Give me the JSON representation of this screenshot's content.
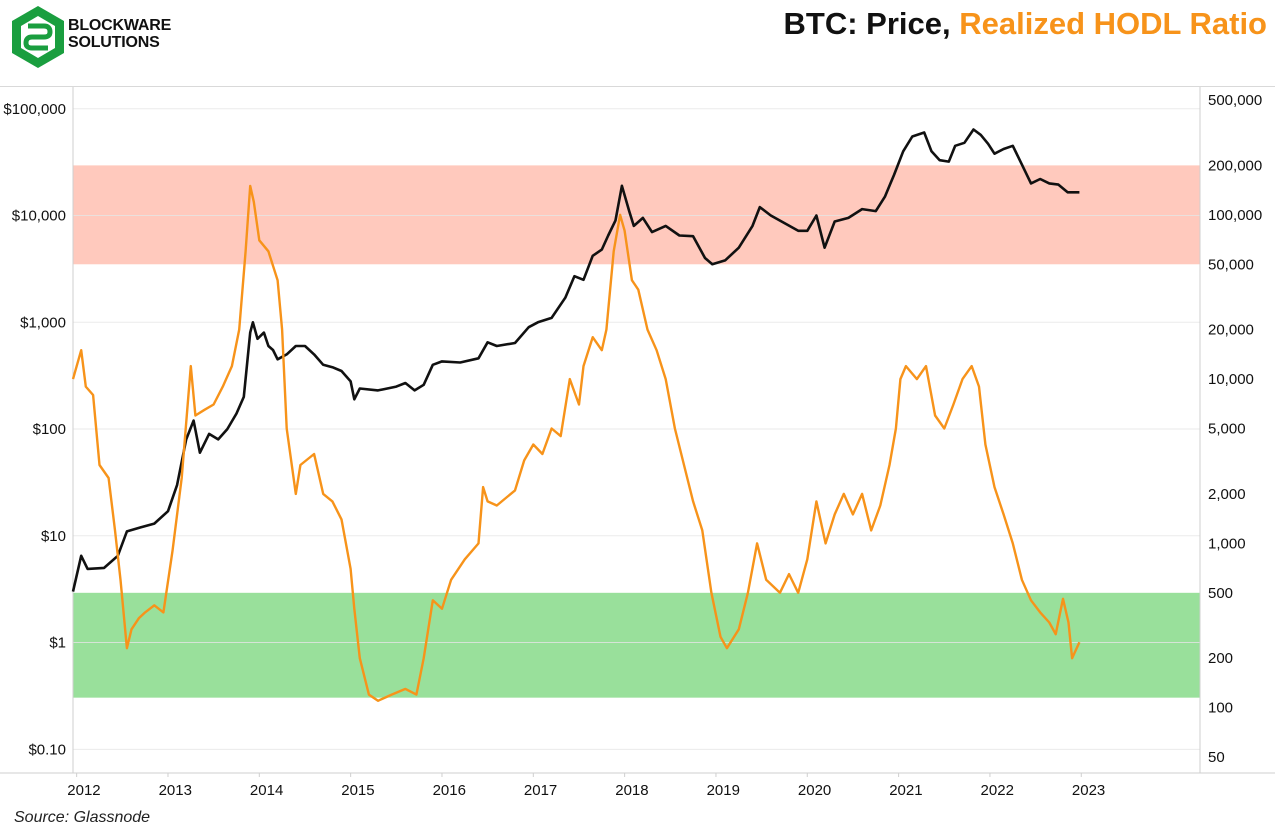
{
  "header": {
    "brand_line1": "BLOCKWARE",
    "brand_line2": "SOLUTIONS",
    "title_part1": "BTC: Price, ",
    "title_part2": "Realized HODL Ratio"
  },
  "source": "Source: Glassnode",
  "colors": {
    "price": "#111111",
    "hodl": "#f7931a",
    "red_band": "#ffc9bd",
    "green_band": "#99e09b",
    "grid": "#e6e6e6",
    "logo_green": "#1a9e3f"
  },
  "chart_data": {
    "type": "line",
    "title": "BTC: Price, Realized HODL Ratio",
    "x_range": [
      2011.96,
      2024.3
    ],
    "x_ticks": [
      {
        "value": 2012,
        "label": "2012"
      },
      {
        "value": 2013,
        "label": "2013"
      },
      {
        "value": 2014,
        "label": "2014"
      },
      {
        "value": 2015,
        "label": "2015"
      },
      {
        "value": 2016,
        "label": "2016"
      },
      {
        "value": 2017,
        "label": "2017"
      },
      {
        "value": 2018,
        "label": "2018"
      },
      {
        "value": 2019,
        "label": "2019"
      },
      {
        "value": 2020,
        "label": "2020"
      },
      {
        "value": 2021,
        "label": "2021"
      },
      {
        "value": 2022,
        "label": "2022"
      },
      {
        "value": 2023,
        "label": "2023"
      }
    ],
    "left_axis": {
      "scale": "log",
      "range": [
        0.06,
        160000
      ],
      "ticks": [
        {
          "value": 0.1,
          "label": "$0.10"
        },
        {
          "value": 1,
          "label": "$1"
        },
        {
          "value": 10,
          "label": "$10"
        },
        {
          "value": 100,
          "label": "$100"
        },
        {
          "value": 1000,
          "label": "$1,000"
        },
        {
          "value": 10000,
          "label": "$10,000"
        },
        {
          "value": 100000,
          "label": "$100,000"
        }
      ]
    },
    "right_axis": {
      "scale": "log",
      "range": [
        40,
        600000
      ],
      "ticks": [
        {
          "value": 50,
          "label": "50"
        },
        {
          "value": 100,
          "label": "100"
        },
        {
          "value": 200,
          "label": "200"
        },
        {
          "value": 500,
          "label": "500"
        },
        {
          "value": 1000,
          "label": "1,000"
        },
        {
          "value": 2000,
          "label": "2,000"
        },
        {
          "value": 5000,
          "label": "5,000"
        },
        {
          "value": 10000,
          "label": "10,000"
        },
        {
          "value": 20000,
          "label": "20,000"
        },
        {
          "value": 50000,
          "label": "50,000"
        },
        {
          "value": 100000,
          "label": "100,000"
        },
        {
          "value": 200000,
          "label": "200,000"
        },
        {
          "value": 500000,
          "label": "500,000"
        }
      ]
    },
    "bands": [
      {
        "name": "red-band",
        "axis": "right",
        "from": 50000,
        "to": 200000,
        "color": "#ffc9bd"
      },
      {
        "name": "green-band",
        "axis": "right",
        "from": 115,
        "to": 500,
        "color": "#99e09b"
      }
    ],
    "series": [
      {
        "name": "BTC Price",
        "axis": "left",
        "color": "#111111",
        "points": [
          [
            2011.96,
            3.0
          ],
          [
            2012.05,
            6.5
          ],
          [
            2012.12,
            4.9
          ],
          [
            2012.3,
            5.0
          ],
          [
            2012.45,
            6.5
          ],
          [
            2012.55,
            11
          ],
          [
            2012.7,
            12
          ],
          [
            2012.85,
            13
          ],
          [
            2013.0,
            17
          ],
          [
            2013.1,
            30
          ],
          [
            2013.2,
            80
          ],
          [
            2013.28,
            120
          ],
          [
            2013.35,
            60
          ],
          [
            2013.45,
            90
          ],
          [
            2013.55,
            80
          ],
          [
            2013.65,
            100
          ],
          [
            2013.75,
            140
          ],
          [
            2013.83,
            200
          ],
          [
            2013.9,
            800
          ],
          [
            2013.93,
            1000
          ],
          [
            2013.98,
            700
          ],
          [
            2014.05,
            800
          ],
          [
            2014.1,
            600
          ],
          [
            2014.15,
            550
          ],
          [
            2014.2,
            450
          ],
          [
            2014.3,
            500
          ],
          [
            2014.4,
            600
          ],
          [
            2014.5,
            600
          ],
          [
            2014.6,
            500
          ],
          [
            2014.7,
            400
          ],
          [
            2014.8,
            380
          ],
          [
            2014.9,
            350
          ],
          [
            2015.0,
            280
          ],
          [
            2015.04,
            190
          ],
          [
            2015.1,
            240
          ],
          [
            2015.3,
            230
          ],
          [
            2015.5,
            250
          ],
          [
            2015.6,
            270
          ],
          [
            2015.7,
            230
          ],
          [
            2015.8,
            260
          ],
          [
            2015.9,
            400
          ],
          [
            2016.0,
            430
          ],
          [
            2016.2,
            420
          ],
          [
            2016.4,
            460
          ],
          [
            2016.5,
            650
          ],
          [
            2016.6,
            600
          ],
          [
            2016.8,
            640
          ],
          [
            2016.95,
            900
          ],
          [
            2017.05,
            1000
          ],
          [
            2017.2,
            1100
          ],
          [
            2017.35,
            1700
          ],
          [
            2017.45,
            2700
          ],
          [
            2017.55,
            2500
          ],
          [
            2017.65,
            4200
          ],
          [
            2017.75,
            4800
          ],
          [
            2017.82,
            6500
          ],
          [
            2017.9,
            9000
          ],
          [
            2017.97,
            19000
          ],
          [
            2018.05,
            11000
          ],
          [
            2018.1,
            8000
          ],
          [
            2018.2,
            9500
          ],
          [
            2018.3,
            7000
          ],
          [
            2018.45,
            8000
          ],
          [
            2018.6,
            6500
          ],
          [
            2018.75,
            6400
          ],
          [
            2018.88,
            4000
          ],
          [
            2018.96,
            3500
          ],
          [
            2019.1,
            3800
          ],
          [
            2019.25,
            5000
          ],
          [
            2019.4,
            8000
          ],
          [
            2019.48,
            12000
          ],
          [
            2019.6,
            10000
          ],
          [
            2019.75,
            8500
          ],
          [
            2019.9,
            7200
          ],
          [
            2020.0,
            7200
          ],
          [
            2020.1,
            10000
          ],
          [
            2020.19,
            5000
          ],
          [
            2020.3,
            8800
          ],
          [
            2020.45,
            9500
          ],
          [
            2020.6,
            11500
          ],
          [
            2020.75,
            11000
          ],
          [
            2020.85,
            15000
          ],
          [
            2020.95,
            24000
          ],
          [
            2021.05,
            40000
          ],
          [
            2021.15,
            55000
          ],
          [
            2021.28,
            60000
          ],
          [
            2021.36,
            40000
          ],
          [
            2021.45,
            33000
          ],
          [
            2021.55,
            32000
          ],
          [
            2021.62,
            45000
          ],
          [
            2021.72,
            48000
          ],
          [
            2021.82,
            64000
          ],
          [
            2021.9,
            57000
          ],
          [
            2021.98,
            47000
          ],
          [
            2022.05,
            38000
          ],
          [
            2022.15,
            42000
          ],
          [
            2022.25,
            45000
          ],
          [
            2022.35,
            30000
          ],
          [
            2022.45,
            20000
          ],
          [
            2022.55,
            22000
          ],
          [
            2022.65,
            20000
          ],
          [
            2022.75,
            19500
          ],
          [
            2022.85,
            16500
          ],
          [
            2022.98,
            16500
          ]
        ]
      },
      {
        "name": "Realized HODL Ratio",
        "axis": "right",
        "color": "#f7931a",
        "points": [
          [
            2011.96,
            10000
          ],
          [
            2012.05,
            15000
          ],
          [
            2012.1,
            9000
          ],
          [
            2012.18,
            8000
          ],
          [
            2012.25,
            3000
          ],
          [
            2012.35,
            2500
          ],
          [
            2012.42,
            1200
          ],
          [
            2012.48,
            600
          ],
          [
            2012.55,
            230
          ],
          [
            2012.6,
            300
          ],
          [
            2012.68,
            350
          ],
          [
            2012.75,
            380
          ],
          [
            2012.85,
            420
          ],
          [
            2012.95,
            380
          ],
          [
            2013.05,
            900
          ],
          [
            2013.15,
            2500
          ],
          [
            2013.25,
            12000
          ],
          [
            2013.3,
            6000
          ],
          [
            2013.4,
            6500
          ],
          [
            2013.5,
            7000
          ],
          [
            2013.6,
            9000
          ],
          [
            2013.7,
            12000
          ],
          [
            2013.78,
            20000
          ],
          [
            2013.85,
            60000
          ],
          [
            2013.9,
            150000
          ],
          [
            2013.94,
            120000
          ],
          [
            2014.0,
            70000
          ],
          [
            2014.1,
            60000
          ],
          [
            2014.2,
            40000
          ],
          [
            2014.25,
            20000
          ],
          [
            2014.3,
            5000
          ],
          [
            2014.4,
            2000
          ],
          [
            2014.45,
            3000
          ],
          [
            2014.6,
            3500
          ],
          [
            2014.7,
            2000
          ],
          [
            2014.8,
            1800
          ],
          [
            2014.9,
            1400
          ],
          [
            2015.0,
            700
          ],
          [
            2015.04,
            400
          ],
          [
            2015.1,
            200
          ],
          [
            2015.2,
            120
          ],
          [
            2015.3,
            110
          ],
          [
            2015.45,
            120
          ],
          [
            2015.6,
            130
          ],
          [
            2015.72,
            120
          ],
          [
            2015.8,
            200
          ],
          [
            2015.9,
            450
          ],
          [
            2016.0,
            400
          ],
          [
            2016.1,
            600
          ],
          [
            2016.25,
            800
          ],
          [
            2016.4,
            1000
          ],
          [
            2016.45,
            2200
          ],
          [
            2016.5,
            1800
          ],
          [
            2016.6,
            1700
          ],
          [
            2016.8,
            2100
          ],
          [
            2016.9,
            3200
          ],
          [
            2017.0,
            4000
          ],
          [
            2017.1,
            3500
          ],
          [
            2017.2,
            5000
          ],
          [
            2017.3,
            4500
          ],
          [
            2017.4,
            10000
          ],
          [
            2017.5,
            7000
          ],
          [
            2017.55,
            12000
          ],
          [
            2017.65,
            18000
          ],
          [
            2017.75,
            15000
          ],
          [
            2017.8,
            20000
          ],
          [
            2017.88,
            60000
          ],
          [
            2017.95,
            100000
          ],
          [
            2018.0,
            80000
          ],
          [
            2018.08,
            40000
          ],
          [
            2018.15,
            35000
          ],
          [
            2018.25,
            20000
          ],
          [
            2018.35,
            15000
          ],
          [
            2018.45,
            10000
          ],
          [
            2018.55,
            5000
          ],
          [
            2018.65,
            3000
          ],
          [
            2018.75,
            1800
          ],
          [
            2018.85,
            1200
          ],
          [
            2018.95,
            500
          ],
          [
            2019.05,
            270
          ],
          [
            2019.12,
            230
          ],
          [
            2019.25,
            300
          ],
          [
            2019.35,
            500
          ],
          [
            2019.45,
            1000
          ],
          [
            2019.55,
            600
          ],
          [
            2019.7,
            500
          ],
          [
            2019.8,
            650
          ],
          [
            2019.9,
            500
          ],
          [
            2020.0,
            800
          ],
          [
            2020.1,
            1800
          ],
          [
            2020.2,
            1000
          ],
          [
            2020.3,
            1500
          ],
          [
            2020.4,
            2000
          ],
          [
            2020.5,
            1500
          ],
          [
            2020.6,
            2000
          ],
          [
            2020.7,
            1200
          ],
          [
            2020.8,
            1700
          ],
          [
            2020.9,
            3000
          ],
          [
            2020.97,
            5000
          ],
          [
            2021.02,
            10000
          ],
          [
            2021.08,
            12000
          ],
          [
            2021.2,
            10000
          ],
          [
            2021.3,
            12000
          ],
          [
            2021.4,
            6000
          ],
          [
            2021.5,
            5000
          ],
          [
            2021.6,
            7000
          ],
          [
            2021.7,
            10000
          ],
          [
            2021.8,
            12000
          ],
          [
            2021.88,
            9000
          ],
          [
            2021.95,
            4000
          ],
          [
            2022.05,
            2200
          ],
          [
            2022.15,
            1500
          ],
          [
            2022.25,
            1000
          ],
          [
            2022.35,
            600
          ],
          [
            2022.45,
            450
          ],
          [
            2022.55,
            380
          ],
          [
            2022.65,
            330
          ],
          [
            2022.72,
            280
          ],
          [
            2022.8,
            460
          ],
          [
            2022.86,
            330
          ],
          [
            2022.9,
            200
          ],
          [
            2022.98,
            250
          ]
        ]
      }
    ],
    "xlabel": "",
    "ylabel_left": "",
    "ylabel_right": ""
  }
}
